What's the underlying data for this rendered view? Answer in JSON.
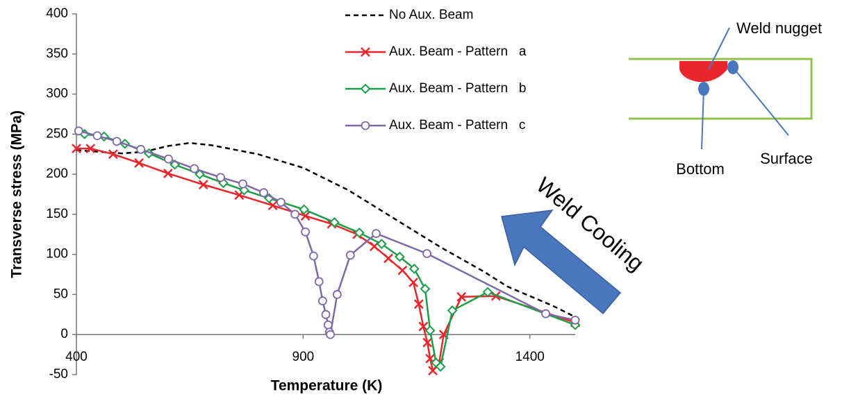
{
  "chart_data": {
    "type": "line",
    "y_label": "Transverse  stress (MPa)",
    "x_label": "Temperature  (K)",
    "xlim": [
      400,
      1500
    ],
    "xticks": [
      400,
      900,
      1400
    ],
    "ylim": [
      -50,
      400
    ],
    "yticks": [
      -50,
      0,
      50,
      100,
      150,
      200,
      250,
      300,
      350,
      400
    ],
    "legend": "top",
    "series": [
      {
        "name": "No Aux. Beam",
        "color": "#000000",
        "dashed": true,
        "markers": false,
        "x": [
          400,
          500,
          550,
          600,
          650,
          700,
          800,
          900,
          1000,
          1100,
          1200,
          1300,
          1350,
          1400,
          1450,
          1500
        ],
        "values": [
          230,
          226,
          228,
          235,
          239,
          236,
          225,
          208,
          180,
          145,
          110,
          78,
          60,
          48,
          36,
          22
        ]
      },
      {
        "name": "Aux. Beam - Pattern   a",
        "color": "#e8262b",
        "marker": "x",
        "markers": true,
        "x": [
          400,
          431,
          481,
          538,
          602,
          680,
          759,
          833,
          905,
          963,
          1019,
          1057,
          1088,
          1119,
          1143,
          1155,
          1165,
          1174,
          1180,
          1186,
          1200,
          1210,
          1249,
          1325,
          1500
        ],
        "values": [
          232,
          232,
          225,
          214,
          201,
          187,
          174,
          161,
          148,
          138,
          125,
          110,
          95,
          80,
          65,
          38,
          10,
          -10,
          -30,
          -45,
          -35,
          0,
          47,
          48,
          15
        ]
      },
      {
        "name": "Aux. Beam - Pattern   b",
        "color": "#1a9e48",
        "marker": "diamond",
        "markers": true,
        "x": [
          418,
          461,
          507,
          560,
          617,
          672,
          724,
          770,
          825,
          902,
          969,
          1024,
          1073,
          1113,
          1145,
          1169,
          1180,
          1193,
          1203,
          1229,
          1307,
          1500
        ],
        "values": [
          250,
          247,
          238,
          226,
          212,
          200,
          189,
          180,
          170,
          156,
          140,
          127,
          113,
          97,
          82,
          57,
          5,
          -35,
          -40,
          30,
          53,
          12
        ]
      },
      {
        "name": "Aux. Beam - Pattern   c",
        "color": "#8067a8",
        "marker": "circle",
        "markers": true,
        "x": [
          405,
          446,
          489,
          542,
          603,
          660,
          718,
          767,
          813,
          851,
          882,
          905,
          923,
          935,
          943,
          950,
          955,
          958,
          960,
          975,
          1004,
          1061,
          1173,
          1435,
          1500
        ],
        "values": [
          254,
          248,
          241,
          231,
          219,
          207,
          196,
          188,
          177,
          165,
          150,
          128,
          98,
          66,
          42,
          25,
          12,
          3,
          0,
          50,
          99,
          126,
          101,
          26,
          18
        ]
      }
    ],
    "annotations": [
      "Weld Cooling",
      "Weld nugget",
      "Bottom",
      "Surface"
    ]
  }
}
